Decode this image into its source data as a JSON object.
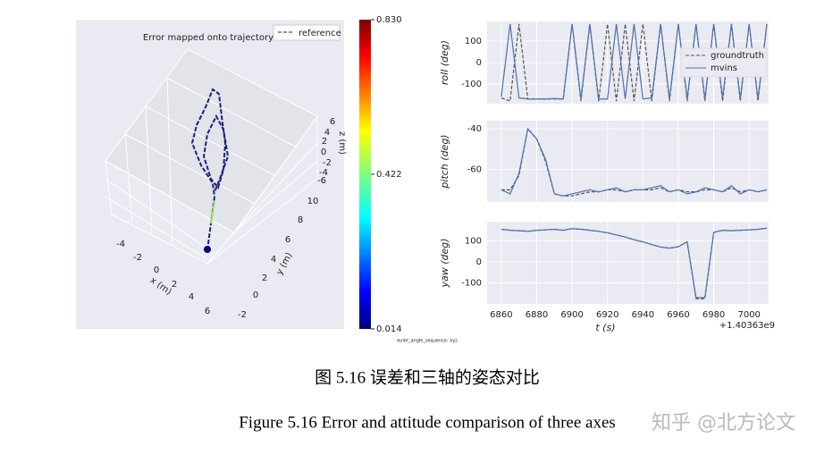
{
  "figure": {
    "left": {
      "title": "Error mapped onto trajectory",
      "legend": "reference",
      "xticks": [
        -4,
        -2,
        0,
        2,
        4,
        6
      ],
      "yticks": [
        -2,
        0,
        2,
        4,
        6,
        8,
        10
      ],
      "zticks": [
        6,
        4,
        2,
        0,
        -2,
        -4,
        -6
      ],
      "xlabel": "x (m)",
      "ylabel": "y (m)",
      "zlabel": "z (m)"
    },
    "colorbar": {
      "ticks": [
        "0.830",
        "0.422",
        "0.014"
      ]
    },
    "right": {
      "xlim": [
        6852,
        7011
      ],
      "xticks": [
        6860,
        6880,
        6900,
        6920,
        6940,
        6960,
        6980,
        7000
      ],
      "offset": "+1.40363e9",
      "xlabel": "t (s)",
      "x": [
        6860,
        6865,
        6870,
        6875,
        6880,
        6885,
        6890,
        6895,
        6900,
        6905,
        6910,
        6915,
        6920,
        6925,
        6930,
        6935,
        6940,
        6945,
        6950,
        6955,
        6960,
        6965,
        6970,
        6975,
        6980,
        6985,
        6990,
        6995,
        7000,
        7005,
        7010
      ],
      "panels": [
        {
          "ylabel": "roll (deg)",
          "ylim": [
            -192,
            192
          ],
          "yticks": [
            100,
            0,
            -100
          ],
          "legend": true,
          "series": [
            {
              "name": "groundtruth",
              "color": "#555555",
              "dash": true,
              "values": [
                -165,
                -180,
                180,
                -170,
                -170,
                -170,
                -170,
                -170,
                180,
                -180,
                180,
                -180,
                180,
                -180,
                180,
                -180,
                180,
                -180,
                180,
                -180,
                180,
                -180,
                180,
                -180,
                180,
                -180,
                180,
                -180,
                180,
                -180,
                180
              ]
            },
            {
              "name": "mvins",
              "color": "#4c72b0",
              "dash": false,
              "values": [
                -160,
                180,
                -165,
                -170,
                -170,
                -170,
                -168,
                -170,
                180,
                -170,
                180,
                -170,
                -170,
                180,
                -170,
                180,
                -170,
                -165,
                180,
                -170,
                180,
                -170,
                180,
                -170,
                180,
                -165,
                180,
                -170,
                180,
                -170,
                180
              ]
            }
          ]
        },
        {
          "ylabel": "pitch (deg)",
          "ylim": [
            -76,
            -36
          ],
          "yticks": [
            -40,
            -60
          ],
          "legend": false,
          "series": [
            {
              "name": "groundtruth",
              "color": "#555555",
              "dash": true,
              "values": [
                -70,
                -70,
                -63,
                -40,
                -45,
                -56,
                -72,
                -73,
                -73,
                -72,
                -71,
                -71,
                -70,
                -70,
                -71,
                -70,
                -70,
                -70,
                -69,
                -71,
                -70,
                -71,
                -71,
                -70,
                -70,
                -71,
                -69,
                -71,
                -70,
                -71,
                -70
              ]
            },
            {
              "name": "mvins",
              "color": "#4c72b0",
              "dash": false,
              "values": [
                -70,
                -72,
                -62,
                -40,
                -45,
                -55,
                -72,
                -73,
                -72,
                -71,
                -70,
                -71,
                -70,
                -69,
                -71,
                -70,
                -70,
                -69,
                -68,
                -71,
                -70,
                -72,
                -71,
                -69,
                -70,
                -71,
                -68,
                -72,
                -70,
                -71,
                -70
              ]
            }
          ]
        },
        {
          "ylabel": "yaw (deg)",
          "ylim": [
            -200,
            191
          ],
          "yticks": [
            100,
            0,
            -100
          ],
          "legend": false,
          "series": [
            {
              "name": "groundtruth",
              "color": "#555555",
              "dash": true,
              "values": [
                155,
                150,
                148,
                145,
                150,
                152,
                155,
                150,
                158,
                155,
                150,
                145,
                138,
                128,
                118,
                105,
                95,
                82,
                70,
                65,
                72,
                95,
                -175,
                -175,
                140,
                150,
                148,
                150,
                152,
                155,
                160
              ]
            },
            {
              "name": "mvins",
              "color": "#4c72b0",
              "dash": false,
              "values": [
                155,
                150,
                148,
                145,
                150,
                152,
                155,
                150,
                158,
                155,
                150,
                145,
                138,
                128,
                118,
                105,
                95,
                82,
                70,
                65,
                72,
                95,
                -170,
                -170,
                140,
                150,
                148,
                150,
                152,
                155,
                160
              ]
            }
          ]
        }
      ]
    },
    "note": "euler_angle_sequence: xyz",
    "caption_zh": "图  5.16  误差和三轴的姿态对比",
    "caption_en": "Figure 5.16 Error and attitude comparison of three axes",
    "watermark": "知乎 @北方论文"
  }
}
